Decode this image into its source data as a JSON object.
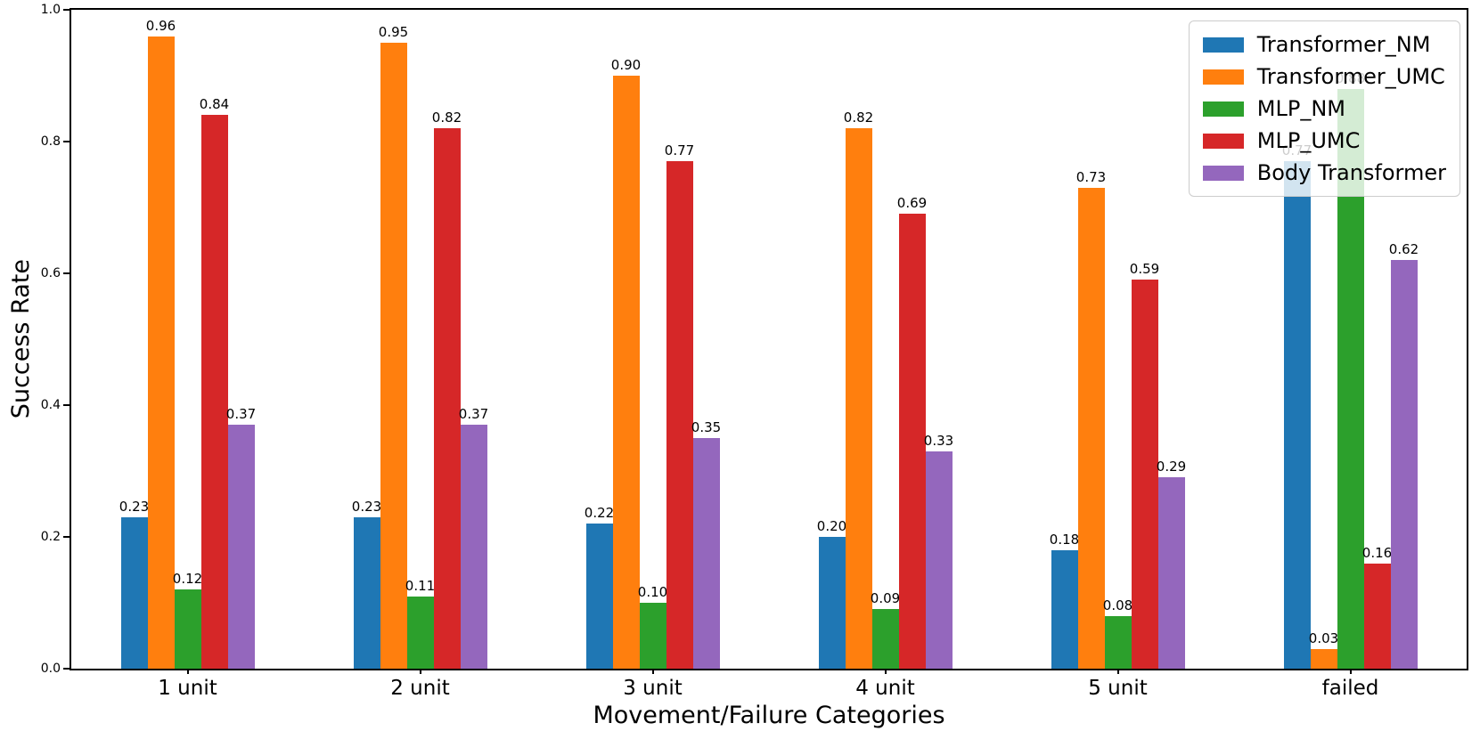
{
  "chart_data": {
    "type": "bar",
    "title": "",
    "xlabel": "Movement/Failure Categories",
    "ylabel": "Success Rate",
    "categories": [
      "1 unit",
      "2 unit",
      "3 unit",
      "4 unit",
      "5 unit",
      "failed"
    ],
    "series": [
      {
        "name": "Transformer_NM",
        "color": "#1f77b4",
        "values": [
          0.23,
          0.23,
          0.22,
          0.2,
          0.18,
          0.77
        ],
        "labels": [
          "0.23",
          "0.23",
          "0.22",
          "0.20",
          "0.18",
          "0.77"
        ]
      },
      {
        "name": "Transformer_UMC",
        "color": "#ff7f0e",
        "values": [
          0.96,
          0.95,
          0.9,
          0.82,
          0.73,
          0.03
        ],
        "labels": [
          "0.96",
          "0.95",
          "0.90",
          "0.82",
          "0.73",
          "0.03"
        ]
      },
      {
        "name": "MLP_NM",
        "color": "#2ca02c",
        "values": [
          0.12,
          0.11,
          0.1,
          0.09,
          0.08,
          0.88
        ],
        "labels": [
          "0.12",
          "0.11",
          "0.10",
          "0.09",
          "0.08",
          "0.88"
        ]
      },
      {
        "name": "MLP_UMC",
        "color": "#d62728",
        "values": [
          0.84,
          0.82,
          0.77,
          0.69,
          0.59,
          0.16
        ],
        "labels": [
          "0.84",
          "0.82",
          "0.77",
          "0.69",
          "0.59",
          "0.16"
        ]
      },
      {
        "name": "Body Transformer",
        "color": "#9467bd",
        "values": [
          0.37,
          0.37,
          0.35,
          0.33,
          0.29,
          0.62
        ],
        "labels": [
          "0.37",
          "0.37",
          "0.35",
          "0.33",
          "0.29",
          "0.62"
        ]
      }
    ],
    "yticks": [
      "0.0",
      "0.2",
      "0.4",
      "0.6",
      "0.8",
      "1.0"
    ],
    "ytick_values": [
      0.0,
      0.2,
      0.4,
      0.6,
      0.8,
      1.0
    ],
    "ylim": [
      0,
      1.0
    ],
    "grid": false,
    "legend_position": "upper right"
  }
}
